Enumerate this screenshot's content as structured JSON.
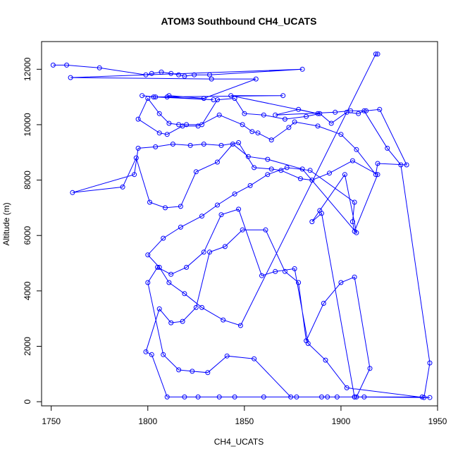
{
  "chart_data": {
    "type": "line",
    "title": "ATOM3 Southbound CH4_UCATS",
    "xlabel": "CH4_UCATS",
    "ylabel": "Altitude (m)",
    "xlim": [
      1745,
      1950
    ],
    "ylim": [
      -150,
      13000
    ],
    "x_ticks": [
      1750,
      1800,
      1850,
      1900,
      1950
    ],
    "y_ticks": [
      0,
      2000,
      4000,
      6000,
      8000,
      10000,
      12000
    ],
    "x_tick_labels": [
      "1750",
      "1800",
      "1850",
      "1900",
      "1950"
    ],
    "y_tick_labels": [
      "0",
      "2000",
      "4000",
      "6000",
      "8000",
      "10000",
      "12000"
    ],
    "grid": false,
    "legend": "none",
    "markers": "open-circle",
    "colors": {
      "series": "#0000ff",
      "frame": "#000000",
      "background": "#ffffff"
    },
    "series": [
      {
        "x": [
          1751,
          1758,
          1775,
          1799,
          1802,
          1807,
          1812,
          1816,
          1819,
          1824,
          1832,
          1880,
          1760,
          1833,
          1856,
          1829,
          1811,
          1810,
          1834,
          1804,
          1797,
          1803,
          1870,
          1843,
          1888,
          1878,
          1866,
          1897,
          1905,
          1913,
          1920,
          1934,
          1919,
          1918,
          1908,
          1900,
          1888,
          1876,
          1873,
          1864,
          1857,
          1854,
          1849,
          1837,
          1826,
          1818,
          1810,
          1806,
          1795,
          1800,
          1806,
          1811,
          1816,
          1820,
          1828,
          1836,
          1845,
          1850,
          1860,
          1871,
          1882,
          1889,
          1895,
          1903,
          1909,
          1912,
          1924,
          1931,
          1946,
          1943,
          1903,
          1892,
          1883,
          1876,
          1866,
          1859,
          1847,
          1838,
          1829,
          1820,
          1812,
          1805,
          1800,
          1808,
          1816,
          1823,
          1831,
          1841,
          1855,
          1874,
          1893,
          1908,
          1915,
          1907,
          1900,
          1891,
          1882,
          1878,
          1871,
          1861,
          1849,
          1840,
          1832,
          1825,
          1818,
          1812,
          1806,
          1799,
          1802,
          1810,
          1819,
          1826,
          1837,
          1845,
          1860,
          1877,
          1890,
          1898,
          1912,
          1942,
          1946,
          1907,
          1907,
          1890,
          1885,
          1889,
          1902,
          1908,
          1880,
          1862,
          1852,
          1844,
          1836,
          1825,
          1817,
          1809,
          1801,
          1794,
          1787,
          1761,
          1793,
          1795,
          1804,
          1813,
          1822,
          1829,
          1838,
          1847,
          1855,
          1864,
          1869,
          1879,
          1885,
          1894,
          1906,
          1919,
          1907,
          1906,
          1907,
          1884,
          1872,
          1862,
          1853,
          1845,
          1836,
          1828,
          1817,
          1808,
          1800,
          1806,
          1811,
          1819,
          1828,
          1839,
          1848,
          1918,
          1919
        ],
        "y": [
          12150,
          12150,
          12050,
          11800,
          11850,
          11900,
          11850,
          11800,
          11750,
          11800,
          11800,
          12000,
          11700,
          11650,
          11650,
          10950,
          11050,
          11000,
          10900,
          11000,
          11050,
          11000,
          11050,
          11050,
          10400,
          10550,
          10350,
          10450,
          10500,
          10500,
          10550,
          8550,
          8600,
          8200,
          9100,
          9650,
          9950,
          10100,
          9900,
          9450,
          9700,
          9750,
          10000,
          10350,
          9950,
          9950,
          9650,
          9700,
          10200,
          10950,
          10400,
          10050,
          10000,
          10000,
          10000,
          10900,
          10950,
          10400,
          10350,
          10200,
          10300,
          10400,
          10050,
          10450,
          10400,
          10500,
          9150,
          8550,
          1400,
          150,
          500,
          1500,
          2100,
          4800,
          4700,
          4550,
          6950,
          6750,
          5400,
          4850,
          4600,
          4850,
          4300,
          1700,
          1150,
          1100,
          1050,
          1650,
          1550,
          170,
          170,
          170,
          1200,
          4500,
          4300,
          3550,
          2200,
          4300,
          4700,
          6200,
          6200,
          5600,
          5400,
          3400,
          2900,
          2850,
          3350,
          1800,
          1700,
          170,
          170,
          170,
          170,
          170,
          170,
          170,
          170,
          170,
          170,
          170,
          150,
          170,
          170,
          6800,
          6500,
          6900,
          8200,
          6100,
          8400,
          8750,
          8850,
          9300,
          8650,
          8300,
          7050,
          7000,
          7200,
          8800,
          7750,
          7550,
          8200,
          9150,
          9200,
          9300,
          9250,
          9300,
          9250,
          9350,
          8450,
          8400,
          8350,
          8050,
          8000,
          8250,
          8700,
          8200,
          6150,
          6500,
          7200,
          8350,
          8450,
          8200,
          7800,
          7500,
          7100,
          6700,
          6300,
          5900,
          5300,
          4850,
          4300,
          3900,
          3400,
          2950,
          2750,
          12550,
          12550
        ]
      }
    ]
  }
}
